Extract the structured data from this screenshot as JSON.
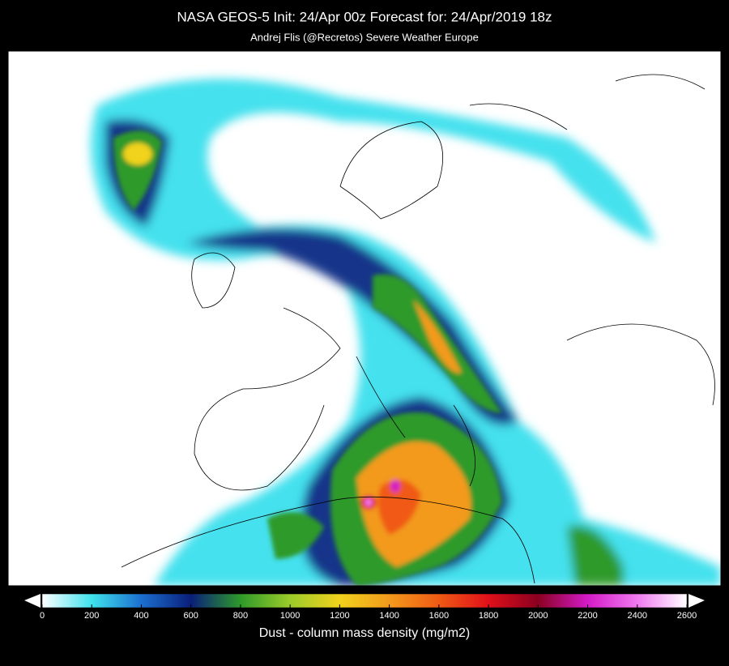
{
  "header": {
    "title": "NASA GEOS-5  Init: 24/Apr 00z    Forecast for: 24/Apr/2019 18z",
    "subtitle": "Andrej Flis (@Recretos)    Severe Weather Europe"
  },
  "colorbar": {
    "label": "Dust - column mass density (mg/m2)",
    "range": [
      0,
      2600
    ],
    "ticks": [
      0,
      200,
      400,
      600,
      800,
      1000,
      1200,
      1400,
      1600,
      1800,
      2000,
      2200,
      2400,
      2600
    ],
    "colors": [
      "#ffffff",
      "#3fe3ee",
      "#1c6fd0",
      "#0a1f7a",
      "#2e9a2a",
      "#9ccc2a",
      "#f1d21c",
      "#f39a1c",
      "#f05a14",
      "#e0101a",
      "#8a0020",
      "#d41ac8",
      "#f07af0",
      "#ffffff"
    ]
  }
}
